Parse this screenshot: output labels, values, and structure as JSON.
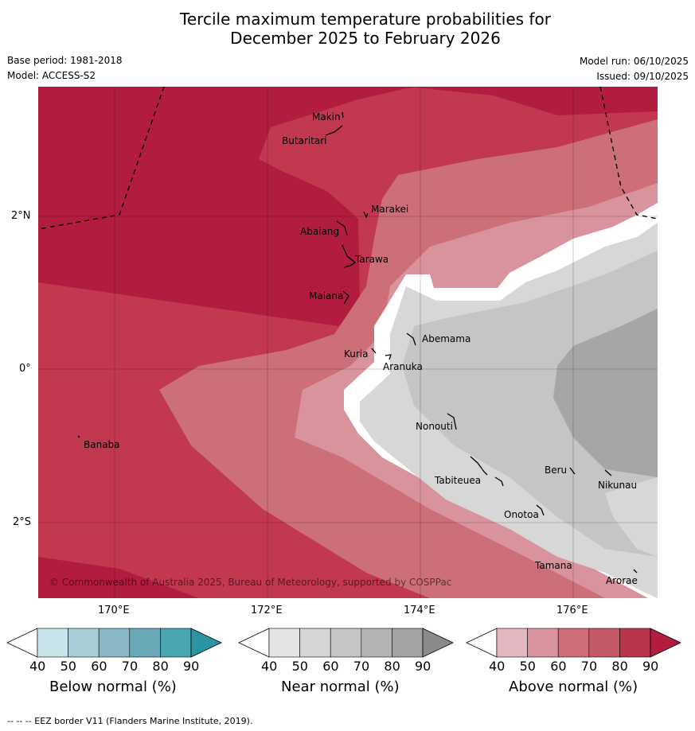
{
  "title": {
    "line1": "Tercile maximum temperature probabilities for",
    "line2": "December 2025 to February 2026"
  },
  "meta": {
    "base_period": "Base period: 1981-2018",
    "model": "Model: ACCESS-S2",
    "model_run": "Model run: 06/10/2025",
    "issued": "Issued: 09/10/2025"
  },
  "axes": {
    "lon_labels": [
      "170°E",
      "172°E",
      "174°E",
      "176°E"
    ],
    "lat_labels": [
      "2°N",
      "0°",
      "2°S"
    ]
  },
  "places": [
    {
      "name": "Makin"
    },
    {
      "name": "Butaritari"
    },
    {
      "name": "Marakei"
    },
    {
      "name": "Abaiang"
    },
    {
      "name": "Tarawa"
    },
    {
      "name": "Maiana"
    },
    {
      "name": "Abemama"
    },
    {
      "name": "Kuria"
    },
    {
      "name": "Aranuka"
    },
    {
      "name": "Banaba"
    },
    {
      "name": "Nonouti"
    },
    {
      "name": "Beru"
    },
    {
      "name": "Tabiteuea"
    },
    {
      "name": "Nikunau"
    },
    {
      "name": "Onotoa"
    },
    {
      "name": "Tamana"
    },
    {
      "name": "Arorae"
    }
  ],
  "copyright": "© Commonwealth of Australia 2025, Bureau of Meteorology, supported by COSPPac",
  "colorbars": [
    {
      "title": "Below normal (%)",
      "ticks": [
        "40",
        "50",
        "60",
        "70",
        "80",
        "90"
      ],
      "colors": [
        "#ffffff",
        "#c9e3ea",
        "#a8cdd6",
        "#8ab9c5",
        "#6aaab8",
        "#4aa4b1",
        "#2b95a4"
      ]
    },
    {
      "title": "Near normal (%)",
      "ticks": [
        "40",
        "50",
        "60",
        "70",
        "80",
        "90"
      ],
      "colors": [
        "#ffffff",
        "#e4e4e4",
        "#d5d5d5",
        "#c5c5c5",
        "#b4b4b4",
        "#a3a3a3",
        "#8a8a8a"
      ]
    },
    {
      "title": "Above normal (%)",
      "ticks": [
        "40",
        "50",
        "60",
        "70",
        "80",
        "90"
      ],
      "colors": [
        "#ffffff",
        "#e2b7bf",
        "#d8939c",
        "#cc6f79",
        "#c45967",
        "#b8344b",
        "#b21c3e"
      ]
    }
  ],
  "footnote": "--  --  -- EEZ border V11 (Flanders Marine Institute, 2019)."
}
